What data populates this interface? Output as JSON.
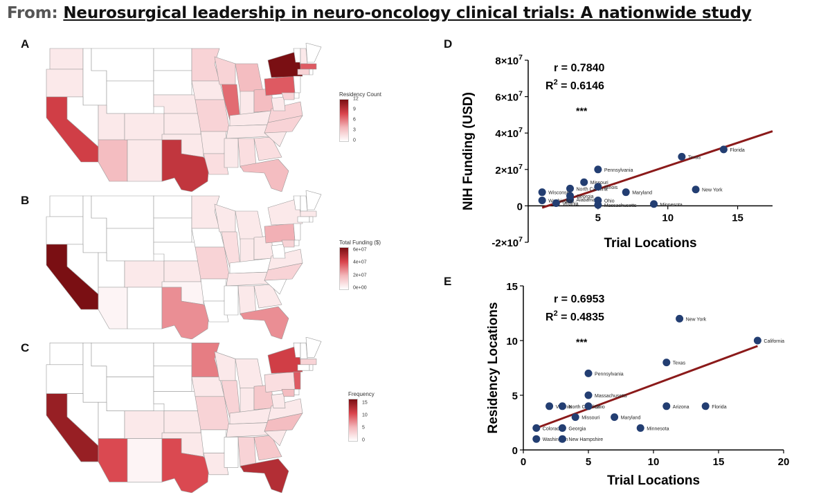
{
  "header": {
    "prefix": "From:",
    "title": "Neurosurgical leadership in neuro-oncology clinical trials: A nationwide study"
  },
  "panels": {
    "A": {
      "label": "A",
      "legend_title": "Residency Count",
      "legend_ticks": [
        "12",
        "9",
        "6",
        "3",
        "0"
      ],
      "color": "#7a0f13"
    },
    "B": {
      "label": "B",
      "legend_title": "Total Funding ($)",
      "legend_ticks": [
        "6e+07",
        "4e+07",
        "2e+07",
        "0e+00"
      ],
      "color": "#7a0f13"
    },
    "C": {
      "label": "C",
      "legend_title": "Frequency",
      "legend_ticks": [
        "15",
        "10",
        "5",
        "0"
      ],
      "color": "#7a0f13"
    },
    "D": {
      "label": "D"
    },
    "E": {
      "label": "E"
    }
  },
  "chart_data": [
    {
      "type": "scatter",
      "panel": "D",
      "xlabel": "Trial Locations",
      "ylabel": "NIH Funding (USD)",
      "xlim": [
        0,
        17.5
      ],
      "ylim": [
        -20000000,
        80000000
      ],
      "xticks": [
        "5",
        "10",
        "15"
      ],
      "yticks": [
        "-2×10^7",
        "0",
        "2×10^7",
        "4×10^7",
        "6×10^7",
        "8×10^7"
      ],
      "stats": {
        "r": "r = 0.7840",
        "r2_prefix": "R",
        "r2_sup": "2",
        "r2_value": " = 0.6146",
        "sig": "***"
      },
      "regression": {
        "x1": 1,
        "y1": -1000000,
        "x2": 17.5,
        "y2": 41000000
      },
      "points": [
        {
          "x": 14,
          "y": 31000000,
          "label": "Florida"
        },
        {
          "x": 11,
          "y": 27000000,
          "label": "Texas"
        },
        {
          "x": 12,
          "y": 9000000,
          "label": "New York"
        },
        {
          "x": 5,
          "y": 20000000,
          "label": "Pennsylvania"
        },
        {
          "x": 4,
          "y": 13000000,
          "label": "Missouri"
        },
        {
          "x": 3,
          "y": 9500000,
          "label": "North Carolina"
        },
        {
          "x": 5,
          "y": 10500000,
          "label": "Illinois"
        },
        {
          "x": 7,
          "y": 7500000,
          "label": "Maryland"
        },
        {
          "x": 1,
          "y": 7500000,
          "label": "Wisconsin"
        },
        {
          "x": 3,
          "y": 5500000,
          "label": "Georgia"
        },
        {
          "x": 3,
          "y": 3500000,
          "label": "Alabama"
        },
        {
          "x": 5,
          "y": 3000000,
          "label": "Ohio"
        },
        {
          "x": 1,
          "y": 3000000,
          "label": "Washington"
        },
        {
          "x": 2,
          "y": 1500000,
          "label": "Virginia"
        },
        {
          "x": 5,
          "y": 500000,
          "label": "Massachusetts"
        },
        {
          "x": 9,
          "y": 1000000,
          "label": "Minnesota"
        }
      ],
      "color": "#233e72",
      "line_color": "#8b1a1a"
    },
    {
      "type": "scatter",
      "panel": "E",
      "xlabel": "Trial Locations",
      "ylabel": "Residency Locations",
      "xlim": [
        0,
        20
      ],
      "ylim": [
        0,
        15
      ],
      "xticks": [
        "0",
        "5",
        "10",
        "15",
        "20"
      ],
      "yticks": [
        "0",
        "5",
        "10",
        "15"
      ],
      "stats": {
        "r": "r = 0.6953",
        "r2_prefix": "R",
        "r2_sup": "2",
        "r2_value": " = 0.4835",
        "sig": "***"
      },
      "regression": {
        "x1": 1,
        "y1": 2,
        "x2": 18,
        "y2": 9.5
      },
      "points": [
        {
          "x": 12,
          "y": 12,
          "label": "New York"
        },
        {
          "x": 18,
          "y": 10,
          "label": "California"
        },
        {
          "x": 11,
          "y": 8,
          "label": "Texas"
        },
        {
          "x": 5,
          "y": 7,
          "label": "Pennsylvania"
        },
        {
          "x": 5,
          "y": 5,
          "label": "Massachusetts"
        },
        {
          "x": 2,
          "y": 4,
          "label": "Virginia"
        },
        {
          "x": 3,
          "y": 4,
          "label": "North Carolina"
        },
        {
          "x": 5,
          "y": 4,
          "label": "Ohio"
        },
        {
          "x": 11,
          "y": 4,
          "label": "Arizona"
        },
        {
          "x": 14,
          "y": 4,
          "label": "Florida"
        },
        {
          "x": 4,
          "y": 3,
          "label": "Missouri"
        },
        {
          "x": 7,
          "y": 3,
          "label": "Maryland"
        },
        {
          "x": 9,
          "y": 2,
          "label": "Minnesota"
        },
        {
          "x": 1,
          "y": 2,
          "label": "Colorado"
        },
        {
          "x": 3,
          "y": 2,
          "label": "Georgia"
        },
        {
          "x": 1,
          "y": 1,
          "label": "Washington"
        },
        {
          "x": 3,
          "y": 1,
          "label": "New Hampshire"
        }
      ],
      "color": "#233e72",
      "line_color": "#8b1a1a"
    }
  ]
}
